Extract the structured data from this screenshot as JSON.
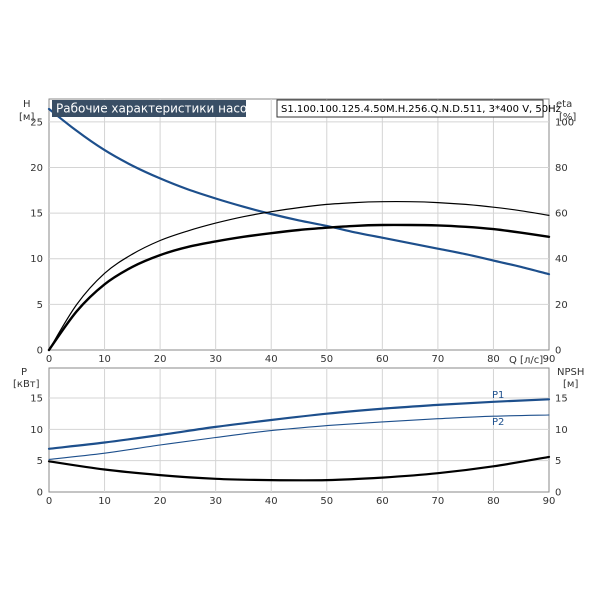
{
  "chart_data": [
    {
      "type": "line",
      "title": "Рабочие характеристики насоса",
      "subtitle": "S1.100.100.125.4.50M.H.256.Q.N.D.511, 3*400 V, 50Hz",
      "xlabel": "Q [л/с]",
      "x_ticks": [
        0,
        10,
        20,
        30,
        40,
        50,
        60,
        70,
        80,
        90
      ],
      "xlim": [
        0,
        90
      ],
      "y_left": {
        "label": "H",
        "unit": "[м]",
        "ticks": [
          0,
          5,
          10,
          15,
          20,
          25
        ],
        "lim": [
          0,
          25
        ]
      },
      "y_right": {
        "label": "eta",
        "unit": "[%]",
        "ticks": [
          0,
          20,
          40,
          60,
          80,
          100
        ],
        "lim": [
          0,
          100
        ]
      },
      "grid": true,
      "series": [
        {
          "name": "",
          "axis": "left",
          "color": "#1d4f8c",
          "width": 2.2,
          "x": [
            0,
            5,
            10,
            15,
            20,
            25,
            30,
            35,
            40,
            45,
            50,
            55,
            60,
            65,
            70,
            75,
            80,
            85,
            90
          ],
          "y": [
            26.4,
            24.0,
            21.9,
            20.2,
            18.8,
            17.6,
            16.6,
            15.7,
            14.9,
            14.2,
            13.6,
            12.9,
            12.3,
            11.7,
            11.1,
            10.5,
            9.8,
            9.1,
            8.3
          ]
        },
        {
          "name": "",
          "axis": "right",
          "color": "#000000",
          "width": 1.2,
          "x": [
            0,
            5,
            10,
            15,
            20,
            25,
            30,
            35,
            40,
            45,
            50,
            55,
            60,
            65,
            70,
            75,
            80,
            85,
            90
          ],
          "y": [
            0,
            20.0,
            33.6,
            42.0,
            48.0,
            52.2,
            55.6,
            58.4,
            60.6,
            62.4,
            63.8,
            64.6,
            65.0,
            65.0,
            64.6,
            63.8,
            62.6,
            61.0,
            59.0
          ]
        },
        {
          "name": "",
          "axis": "right",
          "color": "#000000",
          "width": 2.4,
          "x": [
            0,
            5,
            10,
            15,
            20,
            25,
            30,
            35,
            40,
            45,
            50,
            55,
            60,
            65,
            70,
            75,
            80,
            85,
            90
          ],
          "y": [
            0,
            17.0,
            28.8,
            36.4,
            41.6,
            45.2,
            47.6,
            49.6,
            51.2,
            52.6,
            53.6,
            54.4,
            54.8,
            54.8,
            54.6,
            54.0,
            53.0,
            51.4,
            49.6
          ]
        }
      ]
    },
    {
      "type": "line",
      "xlim": [
        0,
        90
      ],
      "x_ticks": [
        0,
        10,
        20,
        30,
        40,
        50,
        60,
        70,
        80,
        90
      ],
      "y_left": {
        "label": "P",
        "unit": "[кВт]",
        "ticks": [
          0,
          5,
          10,
          15
        ],
        "lim": [
          0,
          15
        ]
      },
      "y_right": {
        "label": "NPSH",
        "unit": "[м]",
        "ticks": [
          0,
          5,
          10,
          15
        ],
        "lim": [
          0,
          15
        ]
      },
      "grid": true,
      "series": [
        {
          "name": "P1",
          "axis": "left",
          "color": "#1d4f8c",
          "width": 2.2,
          "x": [
            0,
            10,
            20,
            30,
            40,
            50,
            60,
            70,
            80,
            90
          ],
          "y": [
            6.9,
            7.9,
            9.1,
            10.4,
            11.5,
            12.5,
            13.3,
            13.9,
            14.4,
            14.8
          ]
        },
        {
          "name": "P2",
          "axis": "left",
          "color": "#1d4f8c",
          "width": 1.1,
          "x": [
            0,
            10,
            20,
            30,
            40,
            50,
            60,
            70,
            80,
            90
          ],
          "y": [
            5.2,
            6.2,
            7.5,
            8.7,
            9.8,
            10.6,
            11.2,
            11.7,
            12.1,
            12.3
          ]
        },
        {
          "name": "",
          "axis": "right",
          "color": "#000000",
          "width": 2.2,
          "x": [
            0,
            10,
            20,
            30,
            40,
            50,
            60,
            70,
            80,
            90
          ],
          "y": [
            4.9,
            3.6,
            2.7,
            2.1,
            1.9,
            1.9,
            2.3,
            3.0,
            4.1,
            5.6
          ]
        }
      ]
    }
  ]
}
